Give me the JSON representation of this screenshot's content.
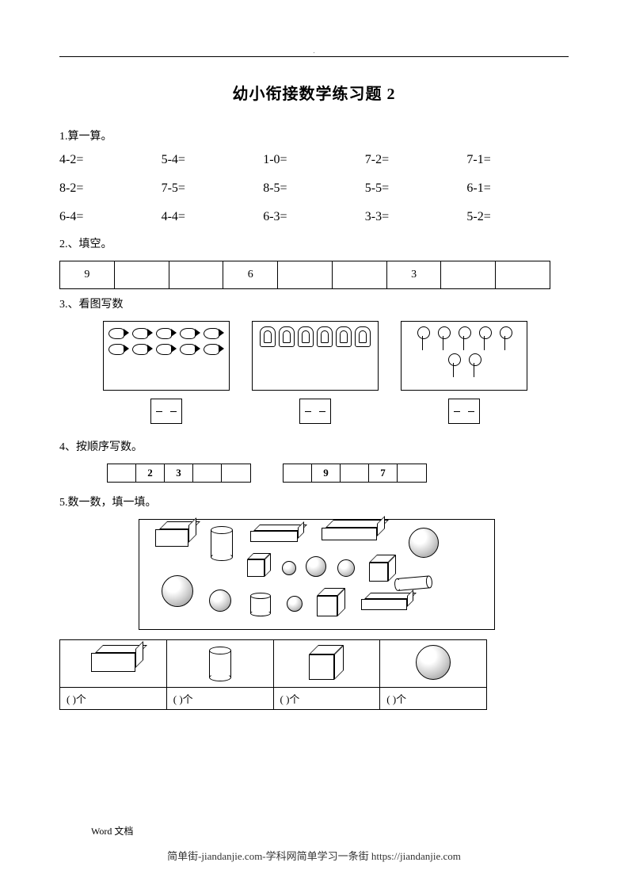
{
  "title": "幼小衔接数学练习题 2",
  "q1": {
    "label": "1.算一算。",
    "items": [
      "4-2=",
      "5-4=",
      "1-0=",
      "7-2=",
      "7-1=",
      "8-2=",
      "7-5=",
      "8-5=",
      "5-5=",
      "6-1=",
      "6-4=",
      "4-4=",
      "6-3=",
      "3-3=",
      "5-2="
    ]
  },
  "q2": {
    "label": "2.、填空。",
    "cells": [
      "9",
      "",
      "",
      "6",
      "",
      "",
      "3",
      "",
      ""
    ]
  },
  "q3": {
    "label": "3.、看图写数",
    "groups": [
      {
        "icon": "fish",
        "count": 10
      },
      {
        "icon": "bread",
        "count": 6
      },
      {
        "icon": "flower",
        "count": 7
      }
    ]
  },
  "q4": {
    "label": "4、按顺序写数。",
    "tables": [
      [
        "",
        "2",
        "3",
        "",
        ""
      ],
      [
        "",
        "9",
        "",
        "7",
        ""
      ]
    ]
  },
  "q5": {
    "label": "5.数一数，填一填。",
    "answer_suffix": ")个",
    "answer_prefix": "(",
    "categories": [
      "cuboid",
      "cylinder",
      "cube",
      "sphere"
    ]
  },
  "footer": {
    "doc": "Word  文档",
    "link": "简单街-jiandanjie.com-学科网简单学习一条街 https://jiandanjie.com"
  }
}
